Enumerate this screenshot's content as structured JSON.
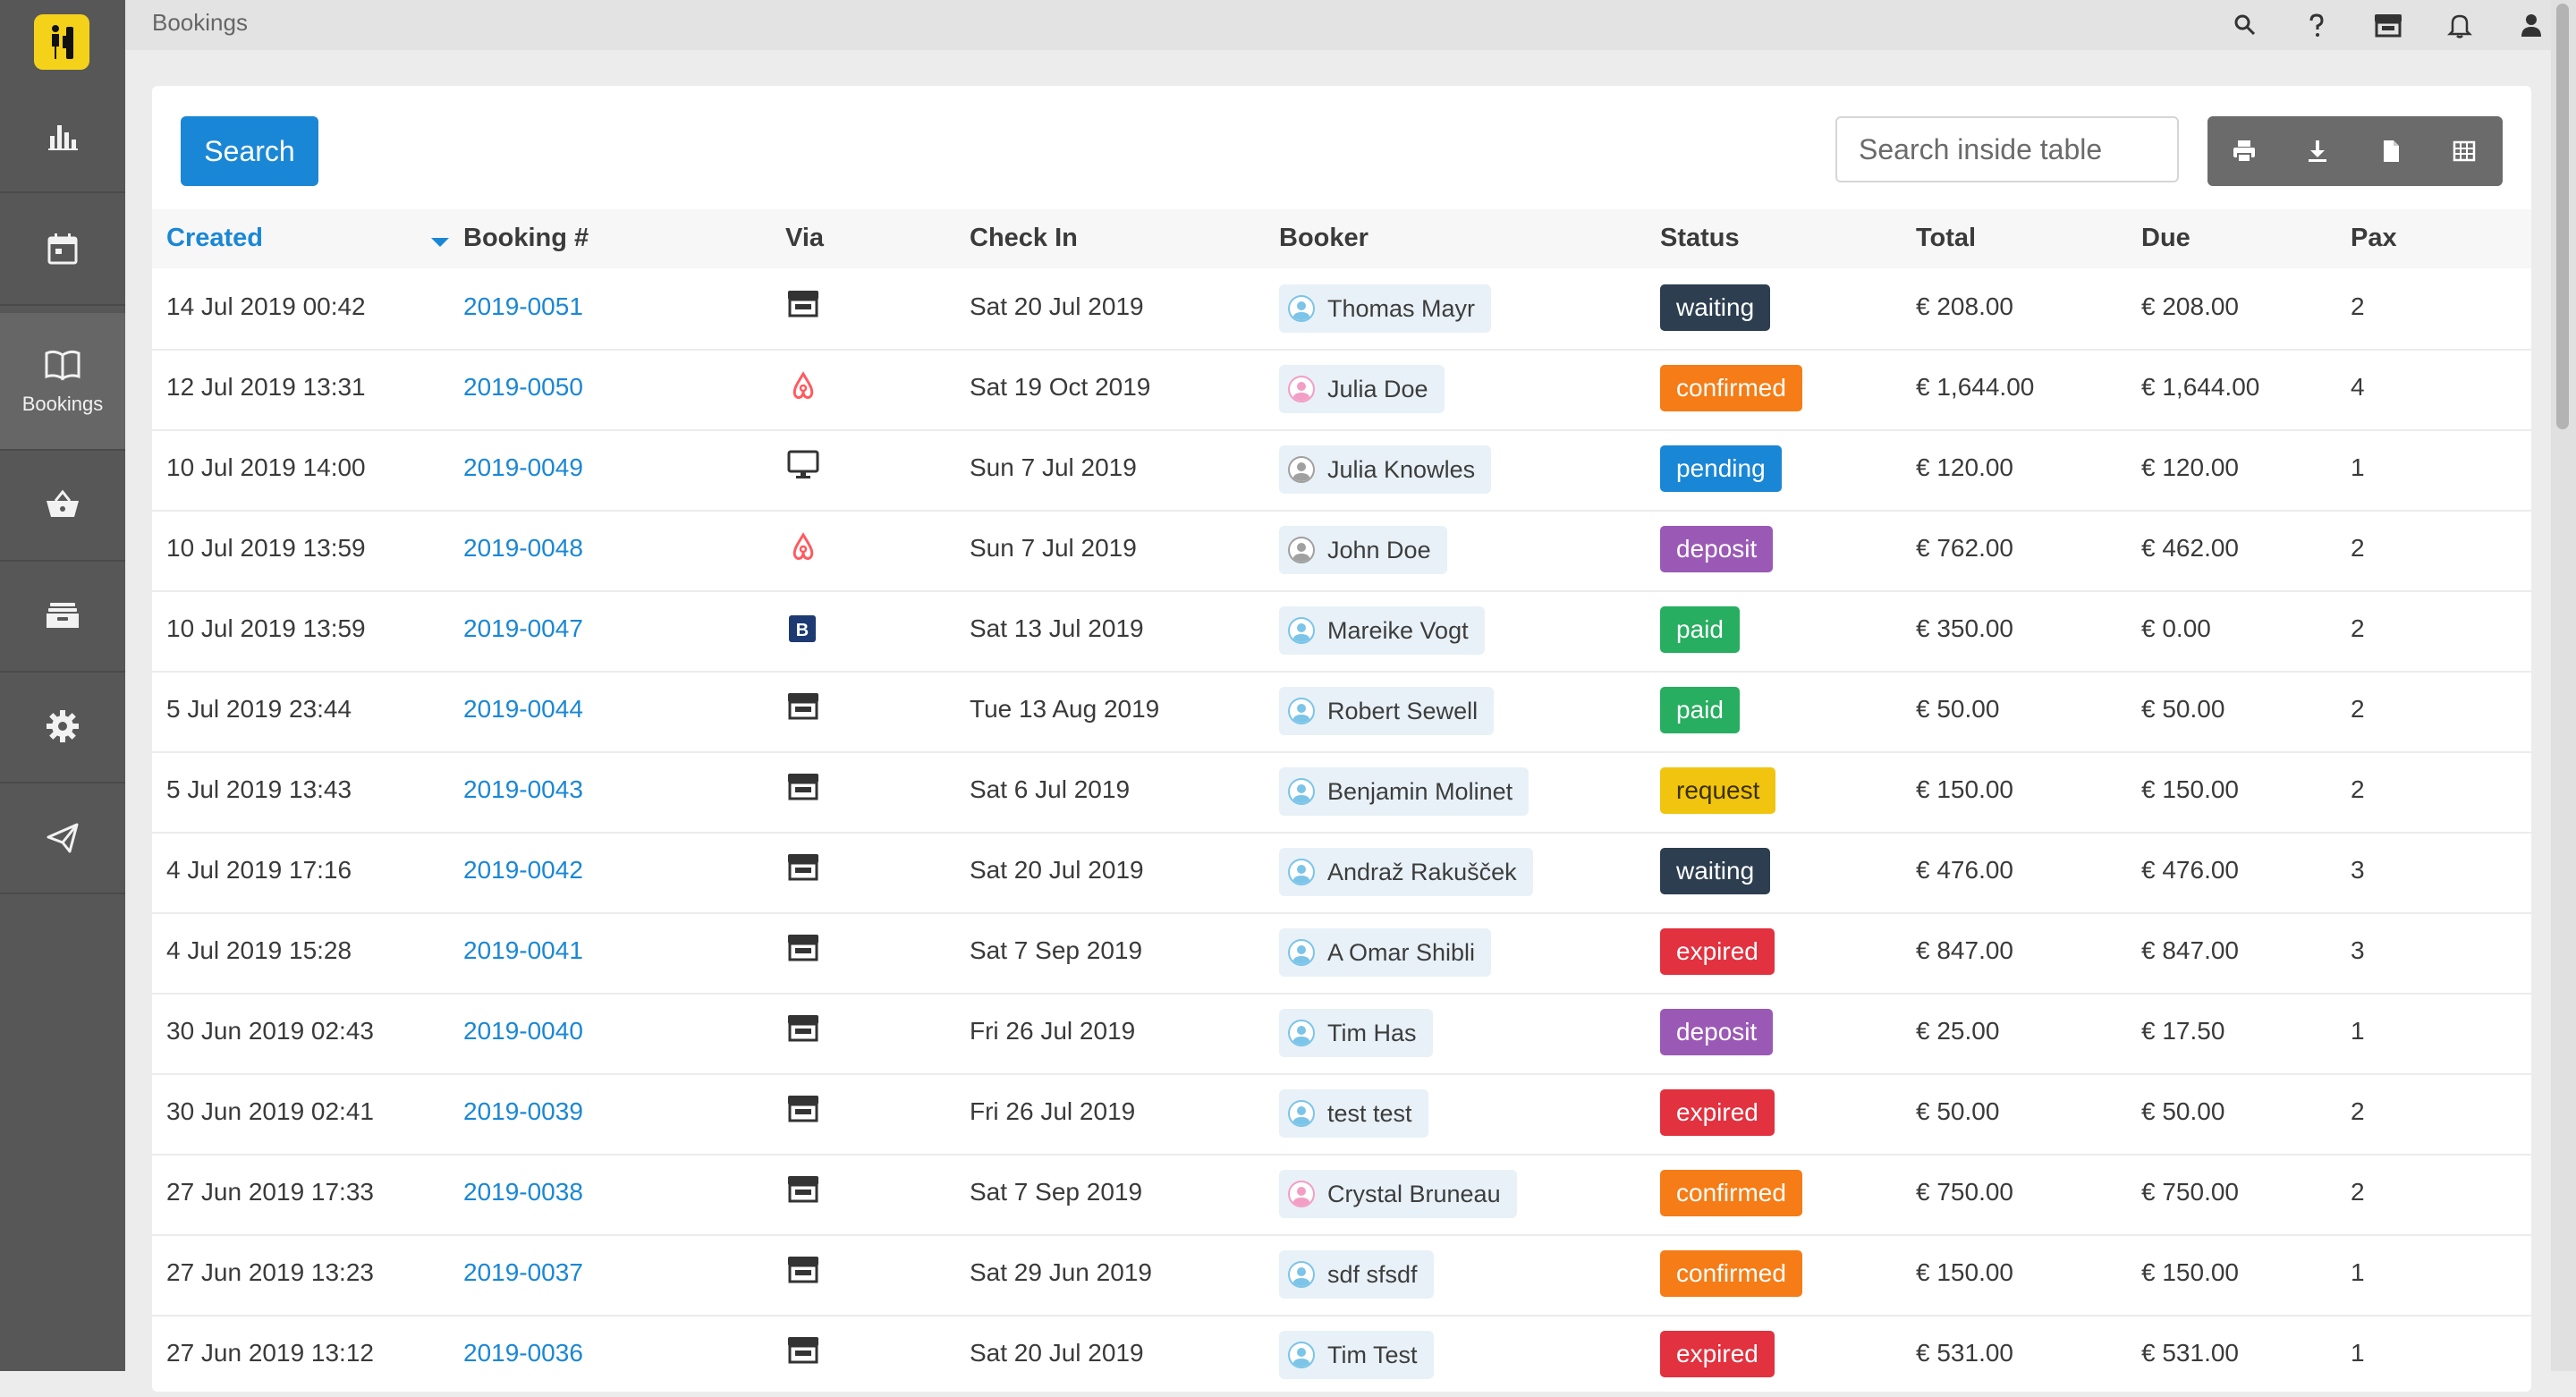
{
  "breadcrumb": "Bookings",
  "sidebar": {
    "items": [
      {
        "icon": "bar-chart-icon",
        "label": ""
      },
      {
        "icon": "calendar-icon",
        "label": ""
      },
      {
        "icon": "open-book-icon",
        "label": "Bookings"
      },
      {
        "icon": "basket-icon",
        "label": ""
      },
      {
        "icon": "inbox-icon",
        "label": ""
      },
      {
        "icon": "gear-icon",
        "label": ""
      },
      {
        "icon": "paper-plane-icon",
        "label": ""
      }
    ]
  },
  "topbar": {
    "icons": [
      "search-icon",
      "help-icon",
      "storefront-icon",
      "bell-icon",
      "user-icon"
    ]
  },
  "toolbar": {
    "search_label": "Search",
    "table_search_placeholder": "Search inside table",
    "tools": [
      "print-icon",
      "download-icon",
      "document-icon",
      "grid-icon"
    ]
  },
  "table": {
    "columns": {
      "created": "Created",
      "booking": "Booking #",
      "via": "Via",
      "checkin": "Check In",
      "booker": "Booker",
      "status": "Status",
      "total": "Total",
      "due": "Due",
      "pax": "Pax"
    },
    "rows": [
      {
        "created": "14 Jul 2019 00:42",
        "booking": "2019-0051",
        "via": "store",
        "checkin": "Sat 20 Jul 2019",
        "booker": "Thomas Mayr",
        "gender": "m",
        "status": "waiting",
        "total": "€ 208.00",
        "due": "€ 208.00",
        "pax": "2"
      },
      {
        "created": "12 Jul 2019 13:31",
        "booking": "2019-0050",
        "via": "airbnb",
        "checkin": "Sat 19 Oct 2019",
        "booker": "Julia Doe",
        "gender": "f",
        "status": "confirmed",
        "total": "€ 1,644.00",
        "due": "€ 1,644.00",
        "pax": "4"
      },
      {
        "created": "10 Jul 2019 14:00",
        "booking": "2019-0049",
        "via": "desktop",
        "checkin": "Sun 7 Jul 2019",
        "booker": "Julia Knowles",
        "gender": "n",
        "status": "pending",
        "total": "€ 120.00",
        "due": "€ 120.00",
        "pax": "1"
      },
      {
        "created": "10 Jul 2019 13:59",
        "booking": "2019-0048",
        "via": "airbnb",
        "checkin": "Sun 7 Jul 2019",
        "booker": "John Doe",
        "gender": "n",
        "status": "deposit",
        "total": "€ 762.00",
        "due": "€ 462.00",
        "pax": "2"
      },
      {
        "created": "10 Jul 2019 13:59",
        "booking": "2019-0047",
        "via": "booking",
        "checkin": "Sat 13 Jul 2019",
        "booker": "Mareike Vogt",
        "gender": "m",
        "status": "paid",
        "total": "€ 350.00",
        "due": "€ 0.00",
        "pax": "2"
      },
      {
        "created": "5 Jul 2019 23:44",
        "booking": "2019-0044",
        "via": "store",
        "checkin": "Tue 13 Aug 2019",
        "booker": "Robert Sewell",
        "gender": "m",
        "status": "paid",
        "total": "€ 50.00",
        "due": "€ 50.00",
        "pax": "2"
      },
      {
        "created": "5 Jul 2019 13:43",
        "booking": "2019-0043",
        "via": "store",
        "checkin": "Sat 6 Jul 2019",
        "booker": "Benjamin Molinet",
        "gender": "m",
        "status": "request",
        "total": "€ 150.00",
        "due": "€ 150.00",
        "pax": "2"
      },
      {
        "created": "4 Jul 2019 17:16",
        "booking": "2019-0042",
        "via": "store",
        "checkin": "Sat 20 Jul 2019",
        "booker": "Andraž Rakušček",
        "gender": "m",
        "status": "waiting",
        "total": "€ 476.00",
        "due": "€ 476.00",
        "pax": "3"
      },
      {
        "created": "4 Jul 2019 15:28",
        "booking": "2019-0041",
        "via": "store",
        "checkin": "Sat 7 Sep 2019",
        "booker": "A Omar Shibli",
        "gender": "m",
        "status": "expired",
        "total": "€ 847.00",
        "due": "€ 847.00",
        "pax": "3"
      },
      {
        "created": "30 Jun 2019 02:43",
        "booking": "2019-0040",
        "via": "store",
        "checkin": "Fri 26 Jul 2019",
        "booker": "Tim Has",
        "gender": "m",
        "status": "deposit",
        "total": "€ 25.00",
        "due": "€ 17.50",
        "pax": "1"
      },
      {
        "created": "30 Jun 2019 02:41",
        "booking": "2019-0039",
        "via": "store",
        "checkin": "Fri 26 Jul 2019",
        "booker": "test test",
        "gender": "m",
        "status": "expired",
        "total": "€ 50.00",
        "due": "€ 50.00",
        "pax": "2"
      },
      {
        "created": "27 Jun 2019 17:33",
        "booking": "2019-0038",
        "via": "store",
        "checkin": "Sat 7 Sep 2019",
        "booker": "Crystal Bruneau",
        "gender": "f",
        "status": "confirmed",
        "total": "€ 750.00",
        "due": "€ 750.00",
        "pax": "2"
      },
      {
        "created": "27 Jun 2019 13:23",
        "booking": "2019-0037",
        "via": "store",
        "checkin": "Sat 29 Jun 2019",
        "booker": "sdf sfsdf",
        "gender": "m",
        "status": "confirmed",
        "total": "€ 150.00",
        "due": "€ 150.00",
        "pax": "1"
      },
      {
        "created": "27 Jun 2019 13:12",
        "booking": "2019-0036",
        "via": "store",
        "checkin": "Sat 20 Jul 2019",
        "booker": "Tim Test",
        "gender": "m",
        "status": "expired",
        "total": "€ 531.00",
        "due": "€ 531.00",
        "pax": "1"
      }
    ]
  },
  "status_colors": {
    "waiting": "#2d3e50",
    "confirmed": "#f57c16",
    "pending": "#1a87d6",
    "deposit": "#9b59b6",
    "paid": "#27ae60",
    "request": "#f1c40f",
    "expired": "#e2313f"
  },
  "status_text_colors": {
    "request": "#3a3000"
  }
}
